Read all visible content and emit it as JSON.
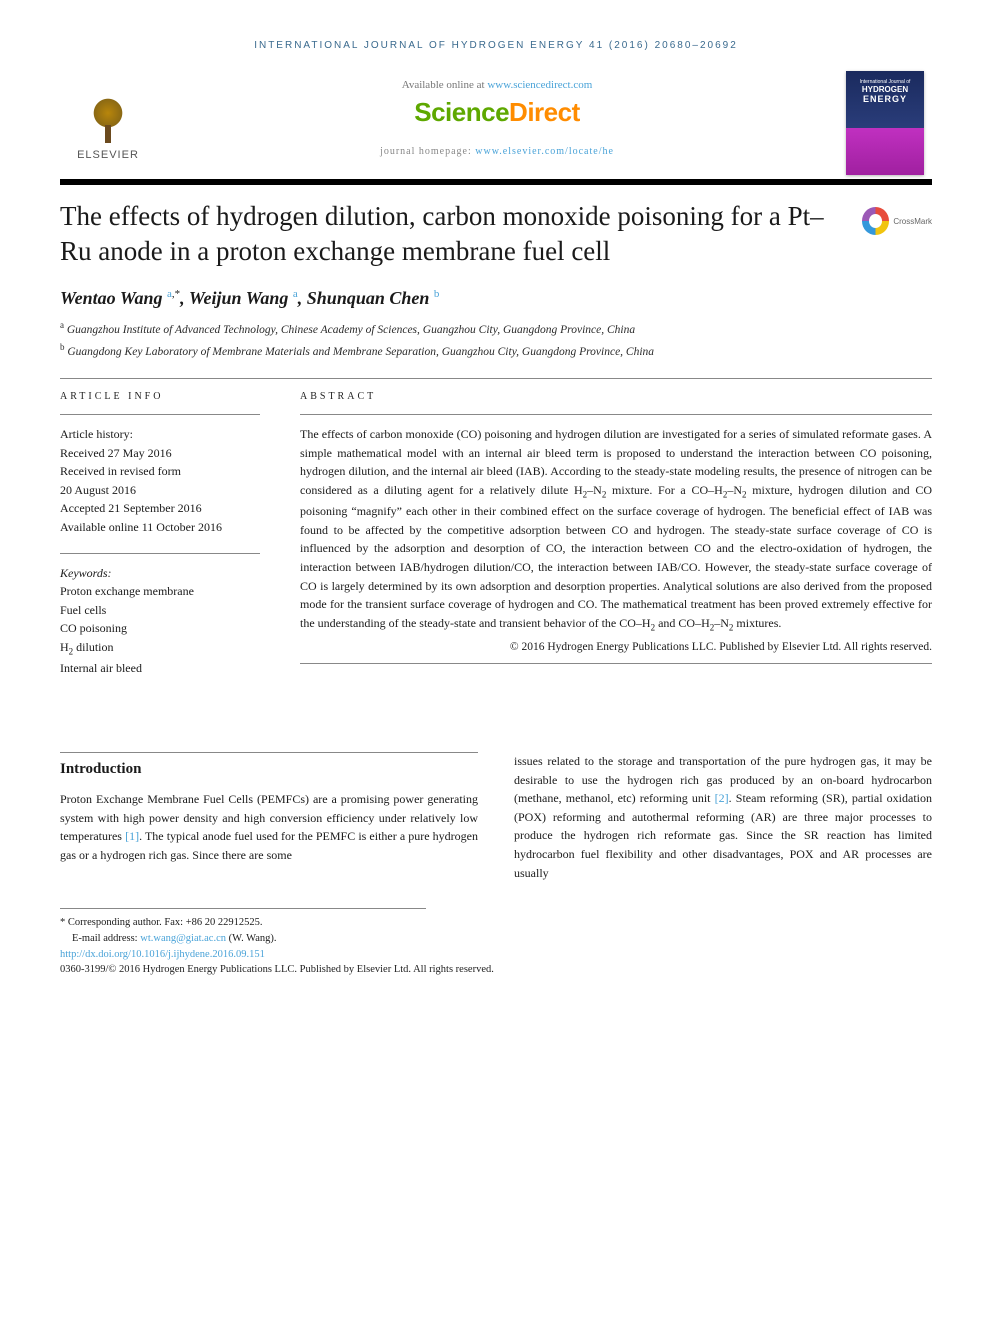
{
  "running_head": "INTERNATIONAL JOURNAL OF HYDROGEN ENERGY 41 (2016) 20680–20692",
  "header": {
    "available_prefix": "Available online at ",
    "available_link": "www.sciencedirect.com",
    "sd_brand_a": "Science",
    "sd_brand_b": "Direct",
    "homepage_prefix": "journal homepage: ",
    "homepage_link": "www.elsevier.com/locate/he",
    "elsevier_label": "ELSEVIER",
    "cover": {
      "line1": "International Journal of",
      "line2": "HYDROGEN",
      "line3": "ENERGY"
    }
  },
  "crossmark_label": "CrossMark",
  "article_title": "The effects of hydrogen dilution, carbon monoxide poisoning for a Pt–Ru anode in a proton exchange membrane fuel cell",
  "authors_html": "Wentao Wang <sup><a href='#'>a</a>,*</sup>, Weijun Wang <sup><a href='#'>a</a></sup>, Shunquan Chen <sup><a href='#'>b</a></sup>",
  "affiliations": [
    {
      "sup": "a",
      "text": "Guangzhou Institute of Advanced Technology, Chinese Academy of Sciences, Guangzhou City, Guangdong Province, China"
    },
    {
      "sup": "b",
      "text": "Guangdong Key Laboratory of Membrane Materials and Membrane Separation, Guangzhou City, Guangdong Province, China"
    }
  ],
  "article_info": {
    "label": "ARTICLE INFO",
    "history_heading": "Article history:",
    "history": [
      "Received 27 May 2016",
      "Received in revised form",
      "20 August 2016",
      "Accepted 21 September 2016",
      "Available online 11 October 2016"
    ],
    "keywords_heading": "Keywords:",
    "keywords": [
      "Proton exchange membrane",
      "Fuel cells",
      "CO poisoning",
      "H₂ dilution",
      "Internal air bleed"
    ]
  },
  "abstract": {
    "label": "ABSTRACT",
    "text": "The effects of carbon monoxide (CO) poisoning and hydrogen dilution are investigated for a series of simulated reformate gases. A simple mathematical model with an internal air bleed term is proposed to understand the interaction between CO poisoning, hydrogen dilution, and the internal air bleed (IAB). According to the steady-state modeling results, the presence of nitrogen can be considered as a diluting agent for a relatively dilute H₂–N₂ mixture. For a CO–H₂–N₂ mixture, hydrogen dilution and CO poisoning “magnify” each other in their combined effect on the surface coverage of hydrogen. The beneficial effect of IAB was found to be affected by the competitive adsorption between CO and hydrogen. The steady-state surface coverage of CO is influenced by the adsorption and desorption of CO, the interaction between CO and the electro-oxidation of hydrogen, the interaction between IAB/hydrogen dilution/CO, the interaction between IAB/CO. However, the steady-state surface coverage of CO is largely determined by its own adsorption and desorption properties. Analytical solutions are also derived from the proposed mode for the transient surface coverage of hydrogen and CO. The mathematical treatment has been proved extremely effective for the understanding of the steady-state and transient behavior of the CO–H₂ and CO–H₂–N₂ mixtures.",
    "copy": "© 2016 Hydrogen Energy Publications LLC. Published by Elsevier Ltd. All rights reserved."
  },
  "intro": {
    "heading": "Introduction",
    "col1": "Proton Exchange Membrane Fuel Cells (PEMFCs) are a promising power generating system with high power density and high conversion efficiency under relatively low temperatures [1]. The typical anode fuel used for the PEMFC is either a pure hydrogen gas or a hydrogen rich gas. Since there are some",
    "col2": "issues related to the storage and transportation of the pure hydrogen gas, it may be desirable to use the hydrogen rich gas produced by an on-board hydrocarbon (methane, methanol, etc) reforming unit [2]. Steam reforming (SR), partial oxidation (POX) reforming and autothermal reforming (AR) are three major processes to produce the hydrogen rich reformate gas. Since the SR reaction has limited hydrocarbon fuel flexibility and other disadvantages, POX and AR processes are usually",
    "ref1": "[1]",
    "ref2": "[2]"
  },
  "footnote": {
    "corr": "* Corresponding author. Fax: +86 20 22912525.",
    "email_label": "E-mail address: ",
    "email": "wt.wang@giat.ac.cn",
    "email_suffix": " (W. Wang).",
    "doi": "http://dx.doi.org/10.1016/j.ijhydene.2016.09.151",
    "issn_copy": "0360-3199/© 2016 Hydrogen Energy Publications LLC. Published by Elsevier Ltd. All rights reserved."
  },
  "colors": {
    "link": "#4aa3d8",
    "sd_green": "#5ea800",
    "sd_orange": "#ff8c00",
    "head_blue": "#3a6a8e"
  },
  "typography": {
    "title_fontsize": 27,
    "authors_fontsize": 18,
    "body_fontsize": 12,
    "running_head_fontsize": 10
  }
}
